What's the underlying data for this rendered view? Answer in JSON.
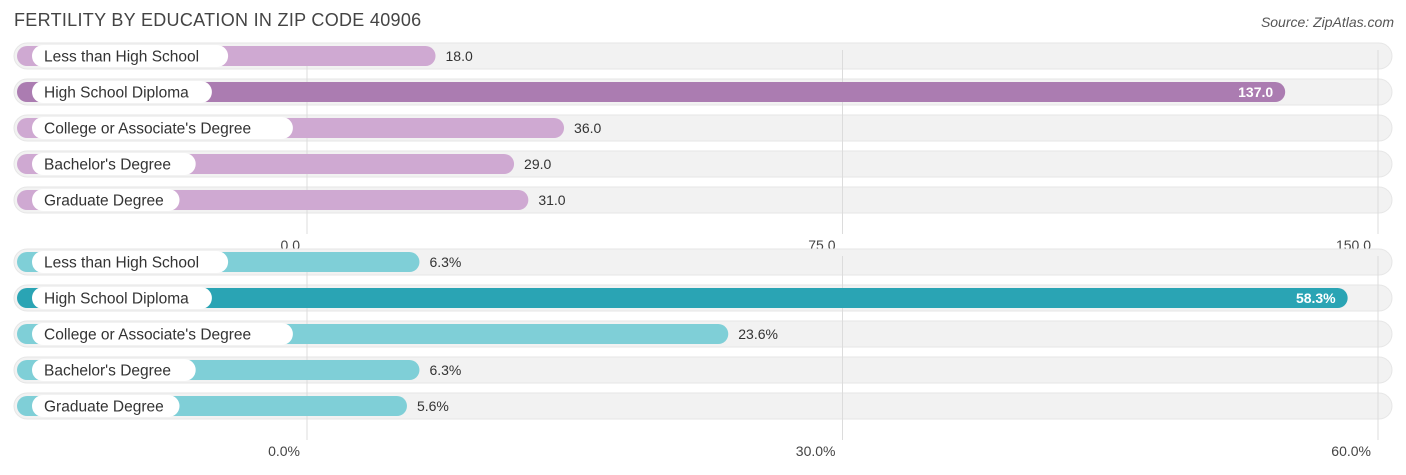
{
  "header": {
    "title": "FERTILITY BY EDUCATION IN ZIP CODE 40906",
    "source": "Source: ZipAtlas.com"
  },
  "colors": {
    "panel1_bar": "#cfa9d2",
    "panel1_highlight": "#ab7cb1",
    "panel2_bar": "#7fcfd7",
    "panel2_highlight": "#2aa4b4",
    "row_bg": "#f2f2f2",
    "grid": "#dcdcdc"
  },
  "chart_data": [
    {
      "type": "bar",
      "orientation": "horizontal",
      "categories": [
        "Less than High School",
        "High School Diploma",
        "College or Associate's Degree",
        "Bachelor's Degree",
        "Graduate Degree"
      ],
      "values": [
        18.0,
        137.0,
        36.0,
        29.0,
        31.0
      ],
      "value_labels": [
        "18.0",
        "137.0",
        "36.0",
        "29.0",
        "31.0"
      ],
      "highlight_index": 1,
      "xlim": [
        0,
        150
      ],
      "ticks": [
        0,
        75,
        150
      ],
      "tick_labels": [
        "0.0",
        "75.0",
        "150.0"
      ]
    },
    {
      "type": "bar",
      "orientation": "horizontal",
      "categories": [
        "Less than High School",
        "High School Diploma",
        "College or Associate's Degree",
        "Bachelor's Degree",
        "Graduate Degree"
      ],
      "values": [
        6.3,
        58.3,
        23.6,
        6.3,
        5.6
      ],
      "value_labels": [
        "6.3%",
        "58.3%",
        "23.6%",
        "6.3%",
        "5.6%"
      ],
      "highlight_index": 1,
      "xlim": [
        0,
        60
      ],
      "ticks": [
        0,
        30,
        60
      ],
      "tick_labels": [
        "0.0%",
        "30.0%",
        "60.0%"
      ]
    }
  ]
}
